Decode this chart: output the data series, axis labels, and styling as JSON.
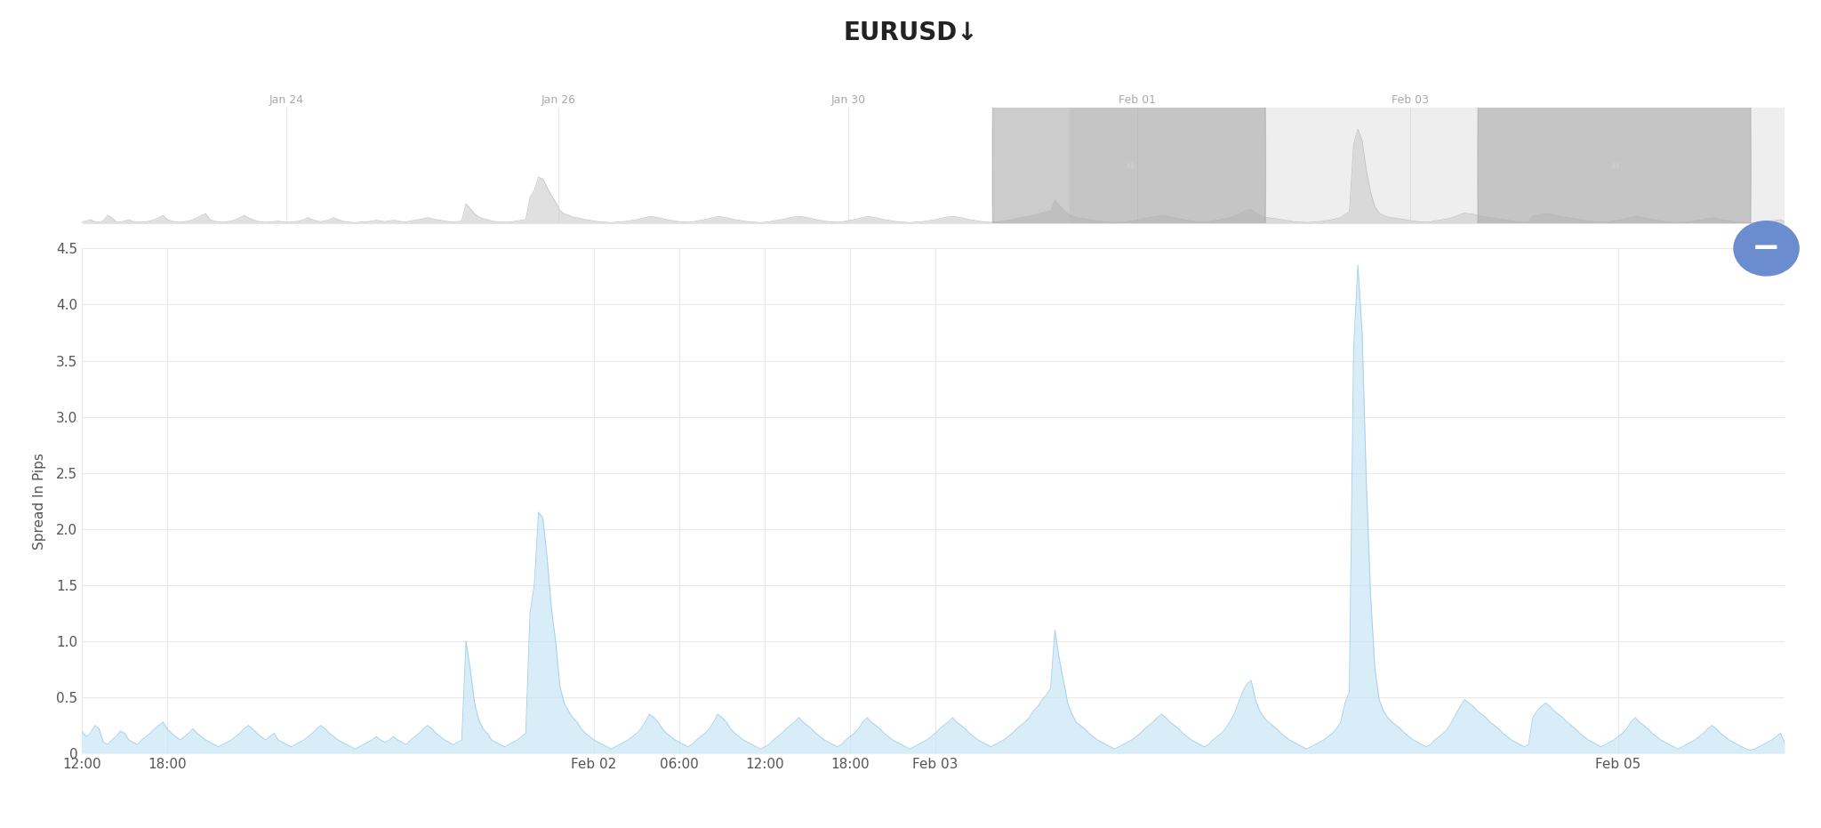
{
  "title": "EURUSD↓",
  "ylabel": "Spread In Pips",
  "ylim": [
    0,
    4.5
  ],
  "yticks": [
    0,
    0.5,
    1.0,
    1.5,
    2.0,
    2.5,
    3.0,
    3.5,
    4.0,
    4.5
  ],
  "fill_color": "#c8e6f5",
  "fill_alpha": 0.7,
  "line_color": "#a0cce8",
  "bg_color": "#ffffff",
  "grid_color": "#e8e8e8",
  "title_fontsize": 20,
  "axis_label_fontsize": 11,
  "tick_fontsize": 11,
  "xtick_labels": [
    "12:00",
    "18:00",
    "Feb 02",
    "06:00",
    "12:00",
    "18:00",
    "Feb 03",
    "Feb 05"
  ],
  "minimap_bg": "#f0f0f0",
  "minimap_labels": [
    "Jan 24",
    "Jan 26",
    "Jan 30",
    "Feb 01",
    "Feb 03"
  ],
  "spread_data": [
    0.2,
    0.15,
    0.18,
    0.25,
    0.22,
    0.1,
    0.08,
    0.12,
    0.15,
    0.2,
    0.18,
    0.12,
    0.1,
    0.08,
    0.12,
    0.15,
    0.18,
    0.22,
    0.25,
    0.28,
    0.22,
    0.18,
    0.15,
    0.12,
    0.15,
    0.18,
    0.22,
    0.18,
    0.15,
    0.12,
    0.1,
    0.08,
    0.06,
    0.08,
    0.1,
    0.12,
    0.15,
    0.18,
    0.22,
    0.25,
    0.22,
    0.18,
    0.15,
    0.12,
    0.15,
    0.18,
    0.12,
    0.1,
    0.08,
    0.06,
    0.08,
    0.1,
    0.12,
    0.15,
    0.18,
    0.22,
    0.25,
    0.22,
    0.18,
    0.15,
    0.12,
    0.1,
    0.08,
    0.06,
    0.04,
    0.06,
    0.08,
    0.1,
    0.12,
    0.15,
    0.12,
    0.1,
    0.12,
    0.15,
    0.12,
    0.1,
    0.08,
    0.12,
    0.15,
    0.18,
    0.22,
    0.25,
    0.22,
    0.18,
    0.15,
    0.12,
    0.1,
    0.08,
    0.1,
    0.12,
    1.0,
    0.75,
    0.45,
    0.3,
    0.22,
    0.18,
    0.12,
    0.1,
    0.08,
    0.06,
    0.08,
    0.1,
    0.12,
    0.15,
    0.18,
    1.25,
    1.5,
    2.15,
    2.1,
    1.75,
    1.3,
    1.0,
    0.6,
    0.45,
    0.38,
    0.32,
    0.28,
    0.22,
    0.18,
    0.15,
    0.12,
    0.1,
    0.08,
    0.06,
    0.04,
    0.06,
    0.08,
    0.1,
    0.12,
    0.15,
    0.18,
    0.22,
    0.28,
    0.35,
    0.32,
    0.28,
    0.22,
    0.18,
    0.15,
    0.12,
    0.1,
    0.08,
    0.06,
    0.08,
    0.12,
    0.15,
    0.18,
    0.22,
    0.28,
    0.35,
    0.32,
    0.28,
    0.22,
    0.18,
    0.15,
    0.12,
    0.1,
    0.08,
    0.06,
    0.04,
    0.06,
    0.08,
    0.12,
    0.15,
    0.18,
    0.22,
    0.25,
    0.28,
    0.32,
    0.28,
    0.25,
    0.22,
    0.18,
    0.15,
    0.12,
    0.1,
    0.08,
    0.06,
    0.08,
    0.12,
    0.15,
    0.18,
    0.22,
    0.28,
    0.32,
    0.28,
    0.25,
    0.22,
    0.18,
    0.15,
    0.12,
    0.1,
    0.08,
    0.06,
    0.04,
    0.06,
    0.08,
    0.1,
    0.12,
    0.15,
    0.18,
    0.22,
    0.25,
    0.28,
    0.32,
    0.28,
    0.25,
    0.22,
    0.18,
    0.15,
    0.12,
    0.1,
    0.08,
    0.06,
    0.08,
    0.1,
    0.12,
    0.15,
    0.18,
    0.22,
    0.25,
    0.28,
    0.32,
    0.38,
    0.42,
    0.48,
    0.52,
    0.58,
    1.1,
    0.85,
    0.65,
    0.45,
    0.35,
    0.28,
    0.25,
    0.22,
    0.18,
    0.15,
    0.12,
    0.1,
    0.08,
    0.06,
    0.04,
    0.06,
    0.08,
    0.1,
    0.12,
    0.15,
    0.18,
    0.22,
    0.25,
    0.28,
    0.32,
    0.35,
    0.32,
    0.28,
    0.25,
    0.22,
    0.18,
    0.15,
    0.12,
    0.1,
    0.08,
    0.06,
    0.08,
    0.12,
    0.15,
    0.18,
    0.22,
    0.28,
    0.35,
    0.45,
    0.55,
    0.62,
    0.65,
    0.48,
    0.38,
    0.32,
    0.28,
    0.25,
    0.22,
    0.18,
    0.15,
    0.12,
    0.1,
    0.08,
    0.06,
    0.04,
    0.06,
    0.08,
    0.1,
    0.12,
    0.15,
    0.18,
    0.22,
    0.28,
    0.45,
    0.55,
    3.6,
    4.35,
    3.75,
    2.4,
    1.4,
    0.75,
    0.48,
    0.38,
    0.32,
    0.28,
    0.25,
    0.22,
    0.18,
    0.15,
    0.12,
    0.1,
    0.08,
    0.06,
    0.08,
    0.12,
    0.15,
    0.18,
    0.22,
    0.28,
    0.35,
    0.42,
    0.48,
    0.45,
    0.42,
    0.38,
    0.35,
    0.32,
    0.28,
    0.25,
    0.22,
    0.18,
    0.15,
    0.12,
    0.1,
    0.08,
    0.06,
    0.08,
    0.32,
    0.38,
    0.42,
    0.45,
    0.42,
    0.38,
    0.35,
    0.32,
    0.28,
    0.25,
    0.22,
    0.18,
    0.15,
    0.12,
    0.1,
    0.08,
    0.06,
    0.08,
    0.1,
    0.12,
    0.15,
    0.18,
    0.22,
    0.28,
    0.32,
    0.28,
    0.25,
    0.22,
    0.18,
    0.15,
    0.12,
    0.1,
    0.08,
    0.06,
    0.04,
    0.06,
    0.08,
    0.1,
    0.12,
    0.15,
    0.18,
    0.22,
    0.25,
    0.22,
    0.18,
    0.15,
    0.12,
    0.1,
    0.08,
    0.06,
    0.04,
    0.03,
    0.04,
    0.06,
    0.08,
    0.1,
    0.12,
    0.15,
    0.18,
    0.1
  ],
  "mini_data_full": [
    0.05,
    0.08,
    0.12,
    0.06,
    0.05,
    0.08,
    0.25,
    0.18,
    0.06,
    0.05,
    0.08,
    0.12,
    0.06,
    0.05,
    0.04,
    0.06,
    0.08,
    0.12,
    0.18,
    0.25,
    0.12,
    0.08,
    0.05,
    0.04,
    0.06,
    0.08,
    0.12,
    0.18,
    0.25,
    0.3,
    0.12,
    0.08,
    0.05,
    0.04,
    0.06,
    0.08,
    0.12,
    0.18,
    0.25,
    0.18,
    0.12,
    0.08,
    0.05,
    0.04,
    0.05,
    0.06,
    0.08,
    0.05,
    0.04,
    0.05,
    0.06,
    0.08,
    0.12,
    0.18,
    0.12,
    0.08,
    0.06,
    0.08,
    0.12,
    0.18,
    0.12,
    0.08,
    0.05,
    0.04,
    0.03,
    0.04,
    0.05,
    0.06,
    0.08,
    0.1,
    0.08,
    0.06,
    0.08,
    0.1,
    0.08,
    0.06,
    0.05,
    0.08,
    0.1,
    0.12,
    0.15,
    0.18,
    0.15,
    0.12,
    0.1,
    0.08,
    0.06,
    0.05,
    0.06,
    0.08,
    0.6,
    0.45,
    0.3,
    0.2,
    0.15,
    0.12,
    0.08,
    0.06,
    0.05,
    0.04,
    0.05,
    0.06,
    0.08,
    0.1,
    0.12,
    0.8,
    1.0,
    1.4,
    1.35,
    1.1,
    0.85,
    0.65,
    0.4,
    0.3,
    0.25,
    0.2,
    0.18,
    0.15,
    0.12,
    0.1,
    0.08,
    0.06,
    0.05,
    0.04,
    0.03,
    0.04,
    0.05,
    0.06,
    0.08,
    0.1,
    0.12,
    0.15,
    0.18,
    0.22,
    0.2,
    0.18,
    0.15,
    0.12,
    0.1,
    0.08,
    0.06,
    0.05,
    0.04,
    0.05,
    0.08,
    0.1,
    0.12,
    0.15,
    0.18,
    0.22,
    0.2,
    0.18,
    0.15,
    0.12,
    0.1,
    0.08,
    0.06,
    0.05,
    0.04,
    0.03,
    0.04,
    0.05,
    0.08,
    0.1,
    0.12,
    0.15,
    0.18,
    0.2,
    0.22,
    0.2,
    0.18,
    0.15,
    0.12,
    0.1,
    0.08,
    0.06,
    0.05,
    0.04,
    0.05,
    0.08,
    0.1,
    0.12,
    0.15,
    0.18,
    0.22,
    0.2,
    0.18,
    0.15,
    0.12,
    0.1,
    0.08,
    0.06,
    0.05,
    0.04,
    0.03,
    0.04,
    0.05,
    0.06,
    0.08,
    0.1,
    0.12,
    0.15,
    0.18,
    0.2,
    0.22,
    0.2,
    0.18,
    0.15,
    0.12,
    0.1,
    0.08,
    0.06,
    0.05,
    0.04,
    0.05,
    0.06,
    0.08,
    0.1,
    0.12,
    0.15,
    0.18,
    0.2,
    0.22,
    0.25,
    0.28,
    0.32,
    0.35,
    0.38,
    0.7,
    0.55,
    0.42,
    0.3,
    0.22,
    0.18,
    0.16,
    0.14,
    0.12,
    0.1,
    0.08,
    0.06,
    0.05,
    0.04,
    0.03,
    0.04,
    0.05,
    0.06,
    0.08,
    0.1,
    0.12,
    0.15,
    0.18,
    0.2,
    0.22,
    0.25,
    0.22,
    0.2,
    0.18,
    0.15,
    0.12,
    0.1,
    0.08,
    0.06,
    0.05,
    0.04,
    0.05,
    0.08,
    0.1,
    0.12,
    0.15,
    0.18,
    0.22,
    0.28,
    0.35,
    0.4,
    0.42,
    0.32,
    0.25,
    0.2,
    0.18,
    0.16,
    0.14,
    0.12,
    0.1,
    0.08,
    0.06,
    0.05,
    0.04,
    0.03,
    0.04,
    0.05,
    0.06,
    0.08,
    0.1,
    0.12,
    0.15,
    0.18,
    0.28,
    0.35,
    2.4,
    2.85,
    2.5,
    1.6,
    0.95,
    0.5,
    0.32,
    0.25,
    0.2,
    0.18,
    0.16,
    0.14,
    0.12,
    0.1,
    0.08,
    0.06,
    0.05,
    0.04,
    0.05,
    0.08,
    0.1,
    0.12,
    0.15,
    0.18,
    0.22,
    0.28,
    0.32,
    0.3,
    0.28,
    0.25,
    0.22,
    0.2,
    0.18,
    0.16,
    0.14,
    0.12,
    0.1,
    0.08,
    0.06,
    0.05,
    0.04,
    0.05,
    0.22,
    0.25,
    0.28,
    0.3,
    0.28,
    0.25,
    0.22,
    0.2,
    0.18,
    0.16,
    0.14,
    0.12,
    0.1,
    0.08,
    0.06,
    0.05,
    0.04,
    0.05,
    0.06,
    0.08,
    0.1,
    0.12,
    0.15,
    0.18,
    0.22,
    0.2,
    0.18,
    0.15,
    0.12,
    0.1,
    0.08,
    0.06,
    0.05,
    0.04,
    0.03,
    0.04,
    0.05,
    0.06,
    0.08,
    0.1,
    0.12,
    0.15,
    0.18,
    0.15,
    0.12,
    0.1,
    0.08,
    0.06,
    0.05,
    0.04,
    0.03,
    0.02,
    0.03,
    0.04,
    0.05,
    0.06,
    0.08,
    0.1,
    0.12,
    0.06
  ]
}
